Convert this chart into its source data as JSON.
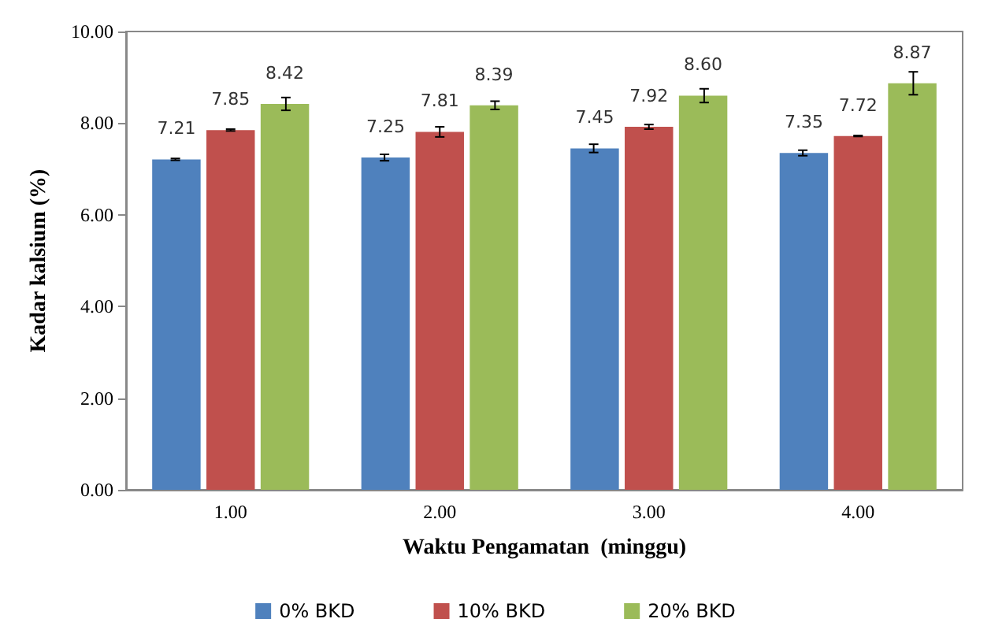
{
  "chart_data": {
    "type": "bar",
    "xlabel": "Waktu Pengamatan  (minggu)",
    "ylabel": "Kadar kalsium (%)",
    "categories": [
      "1.00",
      "2.00",
      "3.00",
      "4.00"
    ],
    "series": [
      {
        "name": "0% BKD",
        "color": "#4f81bd",
        "values": [
          7.21,
          7.25,
          7.45,
          7.35
        ],
        "value_labels": [
          "7.21",
          "7.25",
          "7.45",
          "7.35"
        ],
        "errors": [
          0.02,
          0.07,
          0.09,
          0.06
        ]
      },
      {
        "name": "10% BKD",
        "color": "#c0504d",
        "values": [
          7.85,
          7.81,
          7.92,
          7.72
        ],
        "value_labels": [
          "7.85",
          "7.81",
          "7.92",
          "7.72"
        ],
        "errors": [
          0.02,
          0.11,
          0.05,
          0.01
        ]
      },
      {
        "name": "20% BKD",
        "color": "#9bbb59",
        "values": [
          8.42,
          8.39,
          8.6,
          8.87
        ],
        "value_labels": [
          "8.42",
          "8.39",
          "8.60",
          "8.87"
        ],
        "errors": [
          0.14,
          0.09,
          0.15,
          0.25
        ]
      }
    ],
    "ylim": [
      0,
      10
    ],
    "yticks": [
      {
        "value": 0,
        "label": "0.00"
      },
      {
        "value": 2,
        "label": "2.00"
      },
      {
        "value": 4,
        "label": "4.00"
      },
      {
        "value": 6,
        "label": "6.00"
      },
      {
        "value": 8,
        "label": "8.00"
      },
      {
        "value": 10,
        "label": "10.00"
      }
    ],
    "legend": "bottom",
    "grid": false
  }
}
